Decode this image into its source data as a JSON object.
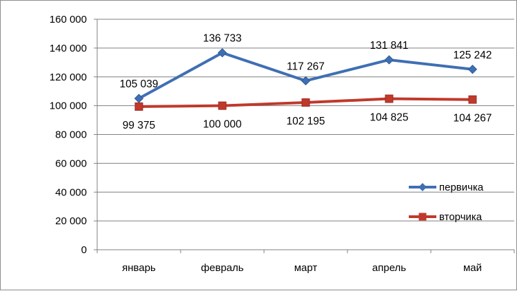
{
  "chart_data": {
    "type": "line",
    "categories": [
      "январь",
      "февраль",
      "март",
      "апрель",
      "май"
    ],
    "series": [
      {
        "name": "первичка",
        "values": [
          105039,
          136733,
          117267,
          131841,
          125242
        ],
        "labels": [
          "105 039",
          "136 733",
          "117 267",
          "131 841",
          "125 242"
        ],
        "color": "#3f6fb3",
        "marker": "diamond"
      },
      {
        "name": "вторчика",
        "values": [
          99375,
          100000,
          102195,
          104825,
          104267
        ],
        "labels": [
          "99 375",
          "100 000",
          "102 195",
          "104 825",
          "104 267"
        ],
        "color": "#c0392b",
        "marker": "square"
      }
    ],
    "ylim": [
      0,
      160000
    ],
    "yticks": [
      0,
      20000,
      40000,
      60000,
      80000,
      100000,
      120000,
      140000,
      160000
    ],
    "ytick_labels": [
      "0",
      "20 000",
      "40 000",
      "60 000",
      "80 000",
      "100 000",
      "120 000",
      "140 000",
      "160 000"
    ],
    "grid": true,
    "legend": "right",
    "title": "",
    "xlabel": "",
    "ylabel": ""
  }
}
